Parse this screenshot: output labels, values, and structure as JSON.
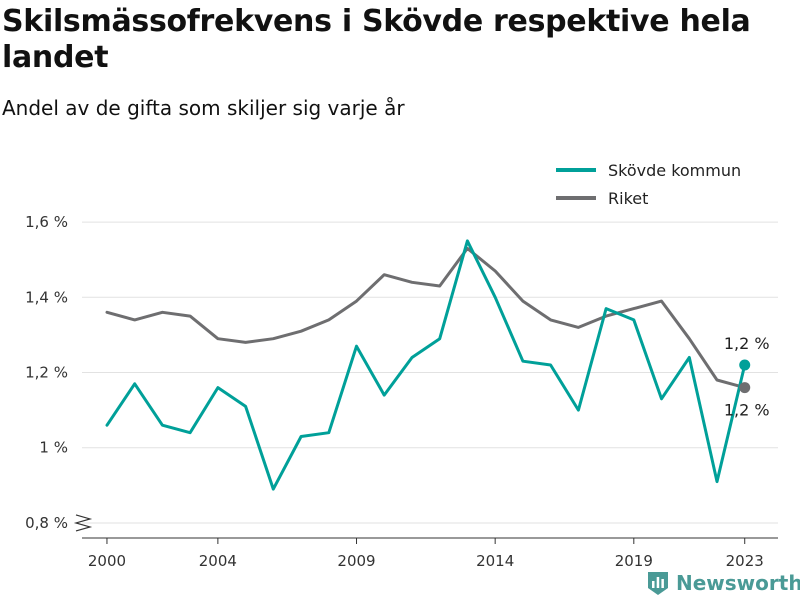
{
  "title": "Skilsmässofrekvens i Skövde respektive hela landet",
  "subtitle": "Andel av de gifta som skiljer sig varje år",
  "brand": {
    "name": "Newsworthy",
    "color": "#4a9a96"
  },
  "chart_data": {
    "type": "line",
    "x": [
      2000,
      2001,
      2002,
      2003,
      2004,
      2005,
      2006,
      2007,
      2008,
      2009,
      2010,
      2011,
      2012,
      2013,
      2014,
      2015,
      2016,
      2017,
      2018,
      2019,
      2020,
      2021,
      2022,
      2023
    ],
    "series": [
      {
        "name": "Skövde kommun",
        "color": "#00a099",
        "values": [
          1.06,
          1.17,
          1.06,
          1.04,
          1.16,
          1.11,
          0.89,
          1.03,
          1.04,
          1.27,
          1.14,
          1.24,
          1.29,
          1.55,
          1.4,
          1.23,
          1.22,
          1.1,
          1.37,
          1.34,
          1.13,
          1.24,
          0.91,
          1.22
        ],
        "end_label": "1,2 %"
      },
      {
        "name": "Riket",
        "color": "#6e6e70",
        "values": [
          1.36,
          1.34,
          1.36,
          1.35,
          1.29,
          1.28,
          1.29,
          1.31,
          1.34,
          1.39,
          1.46,
          1.44,
          1.43,
          1.53,
          1.47,
          1.39,
          1.34,
          1.32,
          1.35,
          1.37,
          1.39,
          1.29,
          1.18,
          1.16
        ],
        "end_label": "1,2 %"
      }
    ],
    "x_ticks": [
      2000,
      2004,
      2009,
      2014,
      2019,
      2023
    ],
    "y_ticks": [
      0.8,
      1.0,
      1.2,
      1.4,
      1.6
    ],
    "y_tick_labels": [
      "0,8 %",
      "1 %",
      "1,2 %",
      "1,4 %",
      "1,6 %"
    ],
    "xlim": [
      1999.1,
      2024.2
    ],
    "ylim": [
      0.76,
      1.68
    ],
    "y_axis_break": true,
    "grid": "horizontal",
    "legend": "top-right"
  }
}
